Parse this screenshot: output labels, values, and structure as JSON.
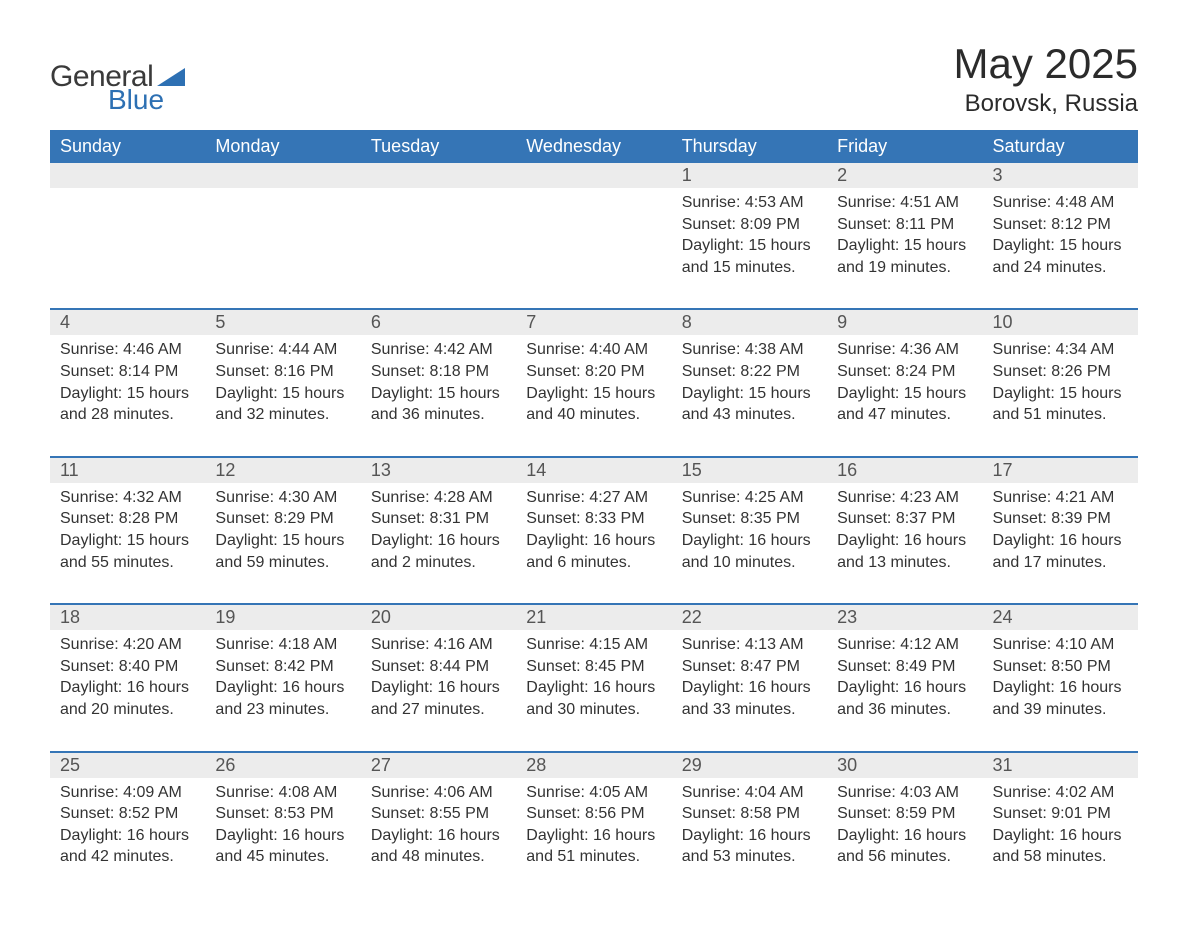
{
  "logo": {
    "word1": "General",
    "word2": "Blue",
    "triangle_color": "#2d70b3",
    "word1_color": "#3a3a3a",
    "word2_color": "#2d70b3"
  },
  "header": {
    "title": "May 2025",
    "location": "Borovsk, Russia"
  },
  "colors": {
    "header_bg": "#3575b6",
    "header_text": "#ffffff",
    "separator": "#3575b6",
    "daynum_bg": "#ececec",
    "daynum_text": "#555555",
    "body_text": "#333333",
    "background": "#ffffff"
  },
  "typography": {
    "title_fontsize": 42,
    "location_fontsize": 24,
    "dayheader_fontsize": 18,
    "daynum_fontsize": 18,
    "details_fontsize": 16
  },
  "day_headers": [
    "Sunday",
    "Monday",
    "Tuesday",
    "Wednesday",
    "Thursday",
    "Friday",
    "Saturday"
  ],
  "weeks": [
    [
      {
        "empty": true
      },
      {
        "empty": true
      },
      {
        "empty": true
      },
      {
        "empty": true
      },
      {
        "day": "1",
        "sunrise": "4:53 AM",
        "sunset": "8:09 PM",
        "daylight": "15 hours and 15 minutes."
      },
      {
        "day": "2",
        "sunrise": "4:51 AM",
        "sunset": "8:11 PM",
        "daylight": "15 hours and 19 minutes."
      },
      {
        "day": "3",
        "sunrise": "4:48 AM",
        "sunset": "8:12 PM",
        "daylight": "15 hours and 24 minutes."
      }
    ],
    [
      {
        "day": "4",
        "sunrise": "4:46 AM",
        "sunset": "8:14 PM",
        "daylight": "15 hours and 28 minutes."
      },
      {
        "day": "5",
        "sunrise": "4:44 AM",
        "sunset": "8:16 PM",
        "daylight": "15 hours and 32 minutes."
      },
      {
        "day": "6",
        "sunrise": "4:42 AM",
        "sunset": "8:18 PM",
        "daylight": "15 hours and 36 minutes."
      },
      {
        "day": "7",
        "sunrise": "4:40 AM",
        "sunset": "8:20 PM",
        "daylight": "15 hours and 40 minutes."
      },
      {
        "day": "8",
        "sunrise": "4:38 AM",
        "sunset": "8:22 PM",
        "daylight": "15 hours and 43 minutes."
      },
      {
        "day": "9",
        "sunrise": "4:36 AM",
        "sunset": "8:24 PM",
        "daylight": "15 hours and 47 minutes."
      },
      {
        "day": "10",
        "sunrise": "4:34 AM",
        "sunset": "8:26 PM",
        "daylight": "15 hours and 51 minutes."
      }
    ],
    [
      {
        "day": "11",
        "sunrise": "4:32 AM",
        "sunset": "8:28 PM",
        "daylight": "15 hours and 55 minutes."
      },
      {
        "day": "12",
        "sunrise": "4:30 AM",
        "sunset": "8:29 PM",
        "daylight": "15 hours and 59 minutes."
      },
      {
        "day": "13",
        "sunrise": "4:28 AM",
        "sunset": "8:31 PM",
        "daylight": "16 hours and 2 minutes."
      },
      {
        "day": "14",
        "sunrise": "4:27 AM",
        "sunset": "8:33 PM",
        "daylight": "16 hours and 6 minutes."
      },
      {
        "day": "15",
        "sunrise": "4:25 AM",
        "sunset": "8:35 PM",
        "daylight": "16 hours and 10 minutes."
      },
      {
        "day": "16",
        "sunrise": "4:23 AM",
        "sunset": "8:37 PM",
        "daylight": "16 hours and 13 minutes."
      },
      {
        "day": "17",
        "sunrise": "4:21 AM",
        "sunset": "8:39 PM",
        "daylight": "16 hours and 17 minutes."
      }
    ],
    [
      {
        "day": "18",
        "sunrise": "4:20 AM",
        "sunset": "8:40 PM",
        "daylight": "16 hours and 20 minutes."
      },
      {
        "day": "19",
        "sunrise": "4:18 AM",
        "sunset": "8:42 PM",
        "daylight": "16 hours and 23 minutes."
      },
      {
        "day": "20",
        "sunrise": "4:16 AM",
        "sunset": "8:44 PM",
        "daylight": "16 hours and 27 minutes."
      },
      {
        "day": "21",
        "sunrise": "4:15 AM",
        "sunset": "8:45 PM",
        "daylight": "16 hours and 30 minutes."
      },
      {
        "day": "22",
        "sunrise": "4:13 AM",
        "sunset": "8:47 PM",
        "daylight": "16 hours and 33 minutes."
      },
      {
        "day": "23",
        "sunrise": "4:12 AM",
        "sunset": "8:49 PM",
        "daylight": "16 hours and 36 minutes."
      },
      {
        "day": "24",
        "sunrise": "4:10 AM",
        "sunset": "8:50 PM",
        "daylight": "16 hours and 39 minutes."
      }
    ],
    [
      {
        "day": "25",
        "sunrise": "4:09 AM",
        "sunset": "8:52 PM",
        "daylight": "16 hours and 42 minutes."
      },
      {
        "day": "26",
        "sunrise": "4:08 AM",
        "sunset": "8:53 PM",
        "daylight": "16 hours and 45 minutes."
      },
      {
        "day": "27",
        "sunrise": "4:06 AM",
        "sunset": "8:55 PM",
        "daylight": "16 hours and 48 minutes."
      },
      {
        "day": "28",
        "sunrise": "4:05 AM",
        "sunset": "8:56 PM",
        "daylight": "16 hours and 51 minutes."
      },
      {
        "day": "29",
        "sunrise": "4:04 AM",
        "sunset": "8:58 PM",
        "daylight": "16 hours and 53 minutes."
      },
      {
        "day": "30",
        "sunrise": "4:03 AM",
        "sunset": "8:59 PM",
        "daylight": "16 hours and 56 minutes."
      },
      {
        "day": "31",
        "sunrise": "4:02 AM",
        "sunset": "9:01 PM",
        "daylight": "16 hours and 58 minutes."
      }
    ]
  ],
  "labels": {
    "sunrise_prefix": "Sunrise: ",
    "sunset_prefix": "Sunset: ",
    "daylight_prefix": "Daylight: "
  }
}
